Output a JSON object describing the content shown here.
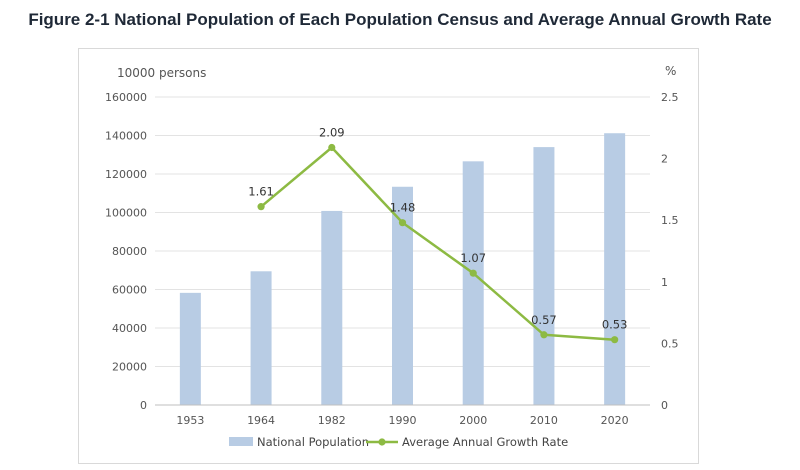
{
  "chart_data": {
    "type": "bar",
    "title": "Figure 2-1 National Population of Each Population Census and Average Annual Growth Rate",
    "categories": [
      "1953",
      "1964",
      "1982",
      "1990",
      "2000",
      "2010",
      "2020"
    ],
    "y_left": {
      "label": "10000 persons",
      "ticks": [
        "0",
        "20000",
        "40000",
        "60000",
        "80000",
        "100000",
        "120000",
        "140000",
        "160000"
      ],
      "range": [
        0,
        160000
      ]
    },
    "y_right": {
      "label": "%",
      "ticks": [
        "0",
        "0.5",
        "1",
        "1.5",
        "2",
        "2.5"
      ],
      "range": [
        0,
        2.5
      ]
    },
    "series": [
      {
        "name": "National Population",
        "type": "bar",
        "axis": "left",
        "color": "#b8cce4",
        "values": [
          58260,
          69458,
          100818,
          113368,
          126583,
          133972,
          141178
        ]
      },
      {
        "name": "Average Annual Growth Rate",
        "type": "line",
        "axis": "right",
        "color": "#8dba43",
        "values": [
          null,
          1.61,
          2.09,
          1.48,
          1.07,
          0.57,
          0.53
        ],
        "labels": [
          "",
          "1.61",
          "2.09",
          "1.48",
          "1.07",
          "0.57",
          "0.53"
        ]
      }
    ],
    "grid": true,
    "legend_position": "bottom"
  }
}
